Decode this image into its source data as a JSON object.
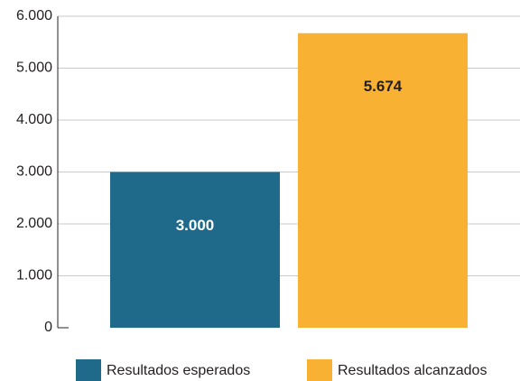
{
  "chart_data": {
    "type": "bar",
    "categories": [
      null
    ],
    "series": [
      {
        "name": "Resultados esperados",
        "color": "#1f6a8a",
        "values": [
          3000
        ],
        "value_labels": [
          "3.000"
        ]
      },
      {
        "name": "Resultados alcanzados",
        "color": "#f8b133",
        "values": [
          5674
        ],
        "value_labels": [
          "5.674"
        ]
      }
    ],
    "ylim": [
      0,
      6000
    ],
    "yticks": [
      0,
      {
        "value": 1000,
        "label": "1.000"
      },
      {
        "value": 2000,
        "label": "2.000"
      },
      {
        "value": 3000,
        "label": "3.000"
      },
      {
        "value": 4000,
        "label": "4.000"
      },
      {
        "value": 5000,
        "label": "5.000"
      },
      {
        "value": 6000,
        "label": "6.000"
      }
    ],
    "grid": true,
    "legend": "bottom"
  }
}
